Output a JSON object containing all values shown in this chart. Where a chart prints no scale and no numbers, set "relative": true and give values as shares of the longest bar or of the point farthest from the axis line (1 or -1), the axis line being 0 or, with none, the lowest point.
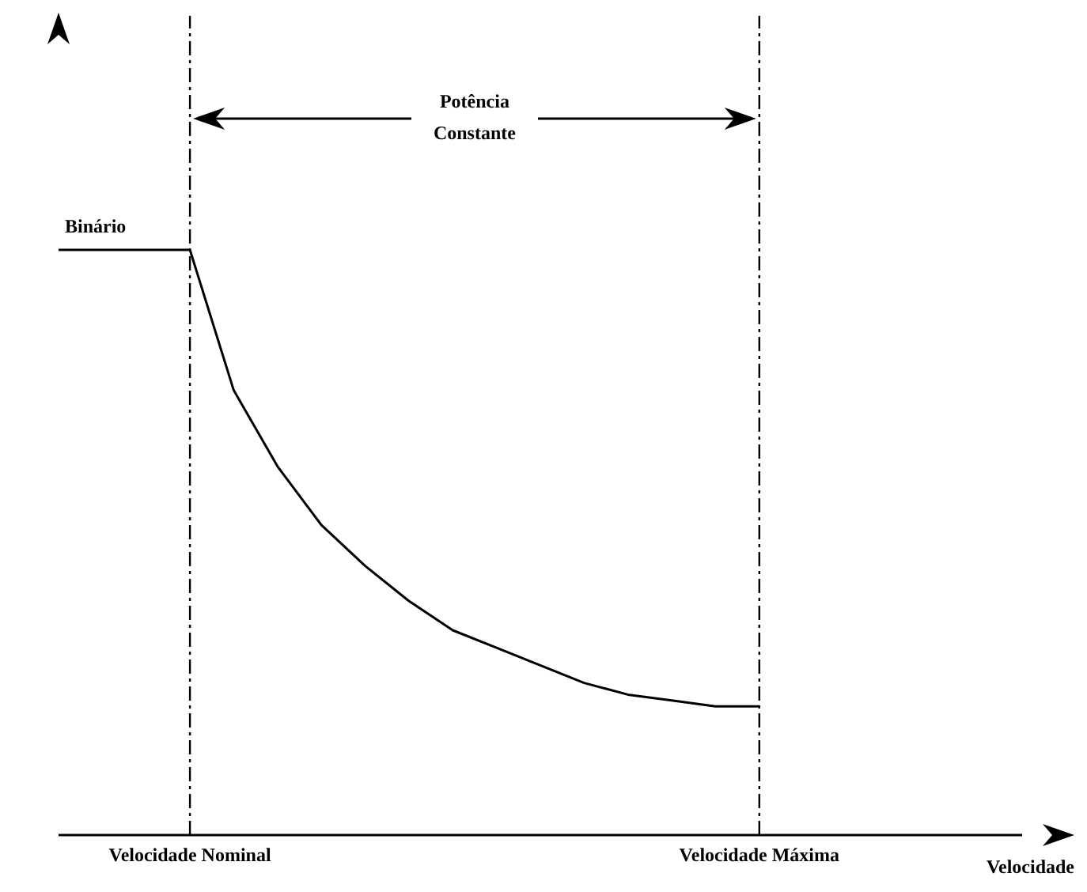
{
  "chart_data": {
    "type": "line",
    "relative": true,
    "ylabel": "Binário",
    "xlabel": "Velocidade",
    "annotations": [
      "Potência Constante"
    ],
    "categories": [
      null,
      null,
      null,
      "Velocidade Nominal",
      null,
      null,
      null,
      null,
      null,
      null,
      null,
      null,
      null,
      null,
      null,
      null,
      "Velocidade Máxima",
      null,
      null,
      null,
      null,
      null,
      null
    ],
    "values": [
      1,
      1,
      1,
      1,
      0.76,
      0.63,
      0.53,
      0.46,
      0.4,
      0.35,
      0.32,
      0.29,
      0.26,
      0.24,
      0.23,
      0.22,
      0.22,
      null,
      null,
      null,
      null,
      null,
      null
    ],
    "color": "#000000",
    "marker": "none",
    "line_style": "solid",
    "grid": false,
    "ref_lines": [
      {
        "axis": "x",
        "value": "Velocidade Nominal",
        "label": null,
        "line_style": "dashed",
        "color": "#000000"
      },
      {
        "axis": "x",
        "value": "Velocidade Máxima",
        "label": null,
        "line_style": "dashed",
        "color": "#000000"
      }
    ]
  }
}
